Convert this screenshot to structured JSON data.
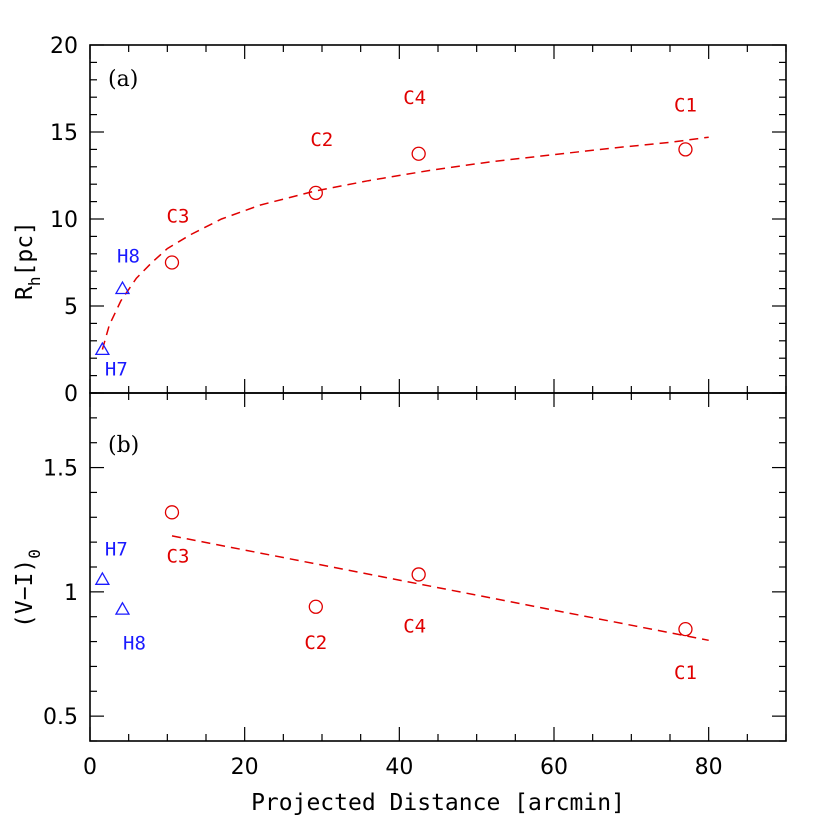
{
  "chart_data": [
    {
      "type": "scatter",
      "panel_label": "(a)",
      "ylabel_main": "R",
      "ylabel_sub": "h",
      "ylabel_rest": "[pc]",
      "xlabel": "",
      "xlim": [
        0,
        90
      ],
      "ylim": [
        0,
        20
      ],
      "y_ticks": [
        0,
        5,
        10,
        15,
        20
      ],
      "y_tick_labels": [
        "0",
        "5",
        "10",
        "15",
        "20"
      ],
      "series": [
        {
          "marker": "circle",
          "color": "#e00000",
          "points": [
            {
              "label": "C1",
              "x": 77.0,
              "y": 14.0
            },
            {
              "label": "C2",
              "x": 29.2,
              "y": 11.5
            },
            {
              "label": "C3",
              "x": 10.6,
              "y": 7.5
            },
            {
              "label": "C4",
              "x": 42.5,
              "y": 13.75
            }
          ]
        },
        {
          "marker": "triangle",
          "color": "#1a1aff",
          "points": [
            {
              "label": "H7",
              "x": 1.6,
              "y": 2.5
            },
            {
              "label": "H8",
              "x": 4.2,
              "y": 6.0
            }
          ]
        }
      ],
      "fit_curve": {
        "style": "dashed",
        "color": "#e00000",
        "x": [
          1.6,
          2.5,
          4,
          6,
          8,
          10,
          13,
          17,
          22,
          29,
          36,
          44,
          52,
          60,
          68,
          75,
          80
        ],
        "y": [
          2.5,
          3.9,
          5.3,
          6.6,
          7.5,
          8.3,
          9.1,
          10.0,
          10.8,
          11.6,
          12.2,
          12.8,
          13.3,
          13.7,
          14.1,
          14.4,
          14.7
        ]
      }
    },
    {
      "type": "scatter",
      "panel_label": "(b)",
      "ylabel": "(V−I)",
      "ylabel_sub": "0",
      "xlabel": "Projected Distance [arcmin]",
      "xlim": [
        0,
        90
      ],
      "ylim": [
        0.4,
        1.8
      ],
      "x_ticks": [
        0,
        20,
        40,
        60,
        80
      ],
      "x_tick_labels": [
        "0",
        "20",
        "40",
        "60",
        "80"
      ],
      "y_ticks": [
        0.5,
        1.0,
        1.5
      ],
      "y_tick_labels": [
        "0.5",
        "1",
        "1.5"
      ],
      "series": [
        {
          "marker": "circle",
          "color": "#e00000",
          "points": [
            {
              "label": "C1",
              "x": 77.0,
              "y": 0.85
            },
            {
              "label": "C2",
              "x": 29.2,
              "y": 0.94
            },
            {
              "label": "C3",
              "x": 10.6,
              "y": 1.32
            },
            {
              "label": "C4",
              "x": 42.5,
              "y": 1.07
            }
          ]
        },
        {
          "marker": "triangle",
          "color": "#1a1aff",
          "points": [
            {
              "label": "H7",
              "x": 1.6,
              "y": 1.05
            },
            {
              "label": "H8",
              "x": 4.2,
              "y": 0.93
            }
          ]
        }
      ],
      "fit_line": {
        "style": "dashed",
        "color": "#e00000",
        "x": [
          10.6,
          80.0
        ],
        "y": [
          1.225,
          0.805
        ]
      }
    }
  ]
}
